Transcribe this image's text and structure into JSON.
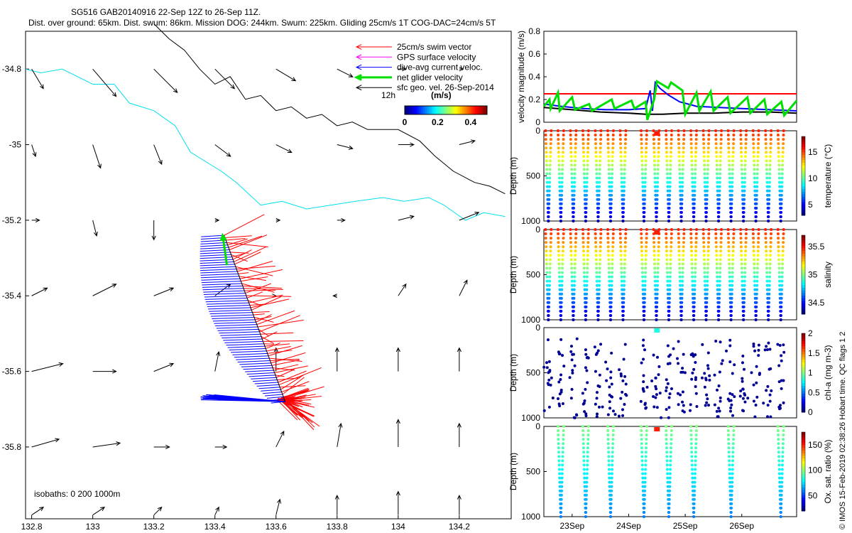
{
  "title_line1": "SG516 GAB20140916 22-Sep 12Z to 26-Sep 11Z.",
  "title_line2": "Dist. over ground: 65km. Dist. swum: 86km. Mission DOG: 244km. Swum: 225km. Gliding 25cm/s 1T COG-DAC=24cm/s 5T",
  "credit": "© IMOS 15-Feb-2019 02:38:26 Hobart time. QC flags 1  2",
  "chart_data": [
    {
      "type": "map",
      "xlim": [
        132.78,
        134.37
      ],
      "ylim": [
        -35.99,
        -34.7
      ],
      "x_ticks": [
        "132.8",
        "133",
        "133.2",
        "133.4",
        "133.6",
        "133.8",
        "134",
        "134.2"
      ],
      "y_ticks": [
        "-34.8",
        "-35",
        "-35.2",
        "-35.4",
        "-35.6",
        "-35.8"
      ],
      "legend": [
        {
          "label": "25cm/s swim vector",
          "color": "#ff0000"
        },
        {
          "label": "GPS surface velocity",
          "color": "#ff00ff"
        },
        {
          "label": "dive-avg current veloc.",
          "color": "#0000ff"
        },
        {
          "label": "net glider velocity",
          "color": "#00e000"
        },
        {
          "label": "sfc geo. vel. 26-Sep-2014",
          "color": "#000000"
        }
      ],
      "legend_extra": "12h",
      "colorbar": {
        "label": "(m/s)",
        "ticks": [
          "0",
          "0.2",
          "0.4"
        ],
        "range": [
          0,
          0.5
        ]
      },
      "isobaths_label": "isobaths: 0   200  1000m",
      "isobaths": [
        {
          "depth": 200,
          "color": "#00e0ee",
          "x": [
            132.78,
            132.83,
            132.9,
            133.0,
            133.07,
            133.12,
            133.2,
            133.27,
            133.32,
            133.38,
            133.42,
            133.47,
            133.55,
            133.62,
            133.7,
            133.78,
            133.86,
            133.95,
            134.02,
            134.1,
            134.15,
            134.22,
            134.28,
            134.35
          ],
          "y": [
            -34.8,
            -34.81,
            -34.8,
            -34.84,
            -34.84,
            -34.89,
            -34.91,
            -34.95,
            -35.02,
            -35.05,
            -35.07,
            -35.1,
            -35.16,
            -35.15,
            -35.17,
            -35.16,
            -35.15,
            -35.14,
            -35.15,
            -35.14,
            -35.16,
            -35.2,
            -35.18,
            -35.19
          ]
        },
        {
          "depth": 1000,
          "color": "#000000",
          "x": [
            133.2,
            133.25,
            133.3,
            133.35,
            133.4,
            133.45,
            133.5,
            133.55,
            133.6,
            133.65,
            133.7,
            133.75,
            133.8,
            133.85,
            133.9,
            134.0,
            134.07,
            134.12,
            134.18,
            134.25,
            134.3,
            134.35
          ],
          "y": [
            -34.68,
            -34.72,
            -34.75,
            -34.8,
            -34.84,
            -34.82,
            -34.88,
            -34.87,
            -34.91,
            -34.9,
            -34.93,
            -34.92,
            -34.95,
            -34.94,
            -34.96,
            -34.96,
            -34.99,
            -35.03,
            -35.07,
            -35.1,
            -35.11,
            -35.13
          ]
        }
      ],
      "geo_vectors": {
        "lons": [
          132.8,
          133.0,
          133.2,
          133.4,
          133.6,
          133.8,
          134.0,
          134.2
        ],
        "lats": [
          -34.8,
          -35.0,
          -35.2,
          -35.4,
          -35.6,
          -35.8,
          -35.98
        ],
        "u": [
          [
            0.3,
            0.6,
            0.6,
            0.5,
            0.5,
            0.4,
            0.2,
            0.1
          ],
          [
            0.1,
            0.2,
            0.2,
            0.4,
            0.4,
            0.4,
            0.4,
            0.4
          ],
          [
            0.2,
            0.1,
            0.0,
            0.1,
            0.1,
            0.2,
            0.4,
            0.5
          ],
          [
            0.4,
            0.6,
            0.5,
            0.4,
            0.0,
            -0.1,
            0.2,
            0.2
          ],
          [
            0.8,
            0.6,
            0.5,
            0.1,
            0.0,
            0.0,
            0.0,
            0.0
          ],
          [
            0.7,
            0.7,
            0.4,
            0.3,
            0.2,
            0.1,
            0.0,
            0.0
          ],
          [
            0.3,
            0.3,
            0.2,
            0.1,
            0.1,
            0.0,
            0.0,
            0.0
          ]
        ],
        "v": [
          [
            -0.5,
            -0.7,
            -0.6,
            -0.5,
            -0.3,
            -0.2,
            0.0,
            0.0
          ],
          [
            -0.3,
            -0.6,
            -0.5,
            -0.3,
            -0.2,
            -0.1,
            0.0,
            0.1
          ],
          [
            0.0,
            -0.4,
            -0.5,
            0.0,
            0.0,
            0.0,
            0.1,
            0.2
          ],
          [
            0.2,
            0.3,
            0.2,
            0.3,
            0.0,
            0.0,
            0.3,
            0.4
          ],
          [
            0.2,
            0.0,
            0.2,
            0.5,
            0.6,
            0.6,
            0.6,
            0.6
          ],
          [
            0.2,
            0.1,
            0.0,
            0.0,
            0.4,
            0.6,
            0.7,
            0.6
          ],
          [
            0.2,
            0.2,
            0.2,
            0.2,
            0.4,
            0.5,
            0.6,
            0.5
          ]
        ]
      },
      "track": {
        "start": [
          133.63,
          -35.68
        ],
        "end": [
          133.43,
          -35.24
        ]
      }
    },
    {
      "type": "line",
      "ylabel": "velocity magnitude (m/s)",
      "ylim": [
        0,
        0.8
      ],
      "y_ticks": [
        "0",
        "0.2",
        "0.4",
        "0.6",
        "0.8"
      ],
      "xlim": [
        22.5,
        26.97
      ],
      "series": [
        {
          "color": "#ff0000",
          "x": [
            22.5,
            26.97
          ],
          "y": [
            0.25,
            0.25
          ]
        },
        {
          "color": "#000000",
          "x": [
            22.5,
            23.0,
            23.5,
            24.0,
            24.3,
            24.6,
            25.0,
            25.5,
            26.0,
            26.5,
            26.97
          ],
          "y": [
            0.13,
            0.11,
            0.09,
            0.08,
            0.07,
            0.07,
            0.08,
            0.08,
            0.09,
            0.09,
            0.08
          ]
        },
        {
          "color": "#0000ff",
          "x": [
            22.5,
            22.8,
            23.2,
            23.6,
            24.0,
            24.3,
            24.38,
            24.42,
            24.47,
            24.55,
            24.7,
            24.9,
            25.2,
            25.6,
            26.0,
            26.5,
            26.97
          ],
          "y": [
            0.16,
            0.14,
            0.12,
            0.11,
            0.11,
            0.12,
            0.28,
            0.1,
            0.35,
            0.3,
            0.24,
            0.18,
            0.14,
            0.13,
            0.12,
            0.11,
            0.1
          ]
        },
        {
          "color": "#00e000",
          "x": [
            22.5,
            22.6,
            22.62,
            22.75,
            22.78,
            23.0,
            23.05,
            23.3,
            23.35,
            23.7,
            23.75,
            24.05,
            24.1,
            24.3,
            24.33,
            24.45,
            24.5,
            24.7,
            24.75,
            24.95,
            25.0,
            25.2,
            25.25,
            25.45,
            25.5,
            25.75,
            25.8,
            26.1,
            26.15,
            26.4,
            26.45,
            26.7,
            26.75,
            26.97
          ],
          "y": [
            0.14,
            0.2,
            0.12,
            0.26,
            0.1,
            0.22,
            0.11,
            0.16,
            0.1,
            0.2,
            0.12,
            0.19,
            0.12,
            0.18,
            0.02,
            0.2,
            0.36,
            0.3,
            0.35,
            0.28,
            0.07,
            0.26,
            0.1,
            0.27,
            0.1,
            0.22,
            0.08,
            0.22,
            0.08,
            0.2,
            0.07,
            0.18,
            0.06,
            0.19
          ]
        }
      ]
    },
    {
      "type": "scatter",
      "variable": "temperature",
      "ylabel": "Depth (m)",
      "ylim": [
        1000,
        0
      ],
      "y_ticks": [
        "0",
        "500",
        "1000"
      ],
      "colorbar_label": "temperature (°C)",
      "colorbar_ticks": [
        "5",
        "10",
        "15"
      ],
      "colorbar_range": [
        3,
        18
      ]
    },
    {
      "type": "scatter",
      "variable": "salinity",
      "ylabel": "Depth (m)",
      "ylim": [
        1000,
        0
      ],
      "y_ticks": [
        "0",
        "500",
        "1000"
      ],
      "colorbar_label": "salinity",
      "colorbar_ticks": [
        "34.5",
        "35",
        "35.5"
      ],
      "colorbar_range": [
        34.3,
        35.7
      ]
    },
    {
      "type": "scatter",
      "variable": "chl-a",
      "ylabel": "Depth (m)",
      "ylim": [
        1000,
        0
      ],
      "y_ticks": [
        "0",
        "500",
        "1000"
      ],
      "colorbar_label": "chl-a (mg m-3)",
      "colorbar_ticks": [
        "0",
        "0.5",
        "1",
        "1.5",
        "2"
      ],
      "colorbar_range": [
        0,
        2
      ]
    },
    {
      "type": "scatter",
      "variable": "oxygen",
      "ylabel": "Depth (m)",
      "ylim": [
        1000,
        0
      ],
      "y_ticks": [
        "0",
        "500",
        "1000"
      ],
      "colorbar_label": "Ox. sat. ratio (%)",
      "colorbar_ticks": [
        "50",
        "100",
        "150"
      ],
      "colorbar_range": [
        20,
        175
      ],
      "time_ticks": [
        "23Sep",
        "24Sep",
        "25Sep",
        "26Sep"
      ]
    }
  ]
}
